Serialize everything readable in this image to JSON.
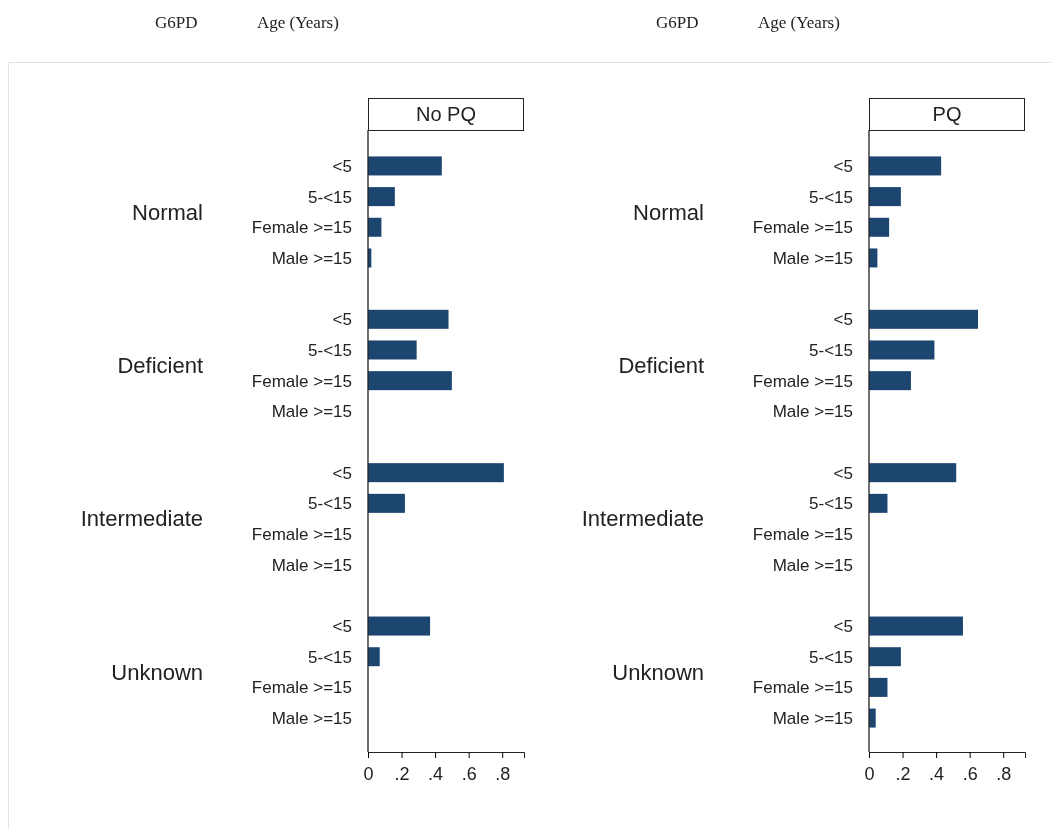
{
  "chart_data": [
    {
      "type": "bar",
      "orientation": "horizontal",
      "title": "No PQ",
      "ylabel": "Age (Years)",
      "annotations": [
        "G6PD",
        "Normal",
        "Deficient",
        "Intermediate",
        "Unknown"
      ],
      "categories": [
        "<5",
        "5-<15",
        "Female >=15",
        "Male >=15",
        null,
        "<5",
        "5-<15",
        "Female >=15",
        "Male >=15",
        null,
        "<5",
        "5-<15",
        "Female >=15",
        "Male >=15",
        null,
        "<5",
        "5-<15",
        "Female >=15",
        "Male >=15"
      ],
      "values": [
        0.44,
        0.16,
        0.08,
        0.02,
        null,
        0.48,
        0.29,
        0.5,
        null,
        null,
        0.81,
        0.22,
        null,
        null,
        null,
        0.37,
        0.07,
        null,
        null
      ],
      "color": "#1c4670",
      "xlim": [
        0,
        0.93
      ],
      "xticks": [
        0,
        {
          "value": 0.2,
          "label": ".2"
        },
        {
          "value": 0.4,
          "label": ".4"
        },
        {
          "value": 0.6,
          "label": ".6"
        },
        {
          "value": 0.8,
          "label": ".8"
        }
      ],
      "grid": false
    },
    {
      "type": "bar",
      "orientation": "horizontal",
      "title": "PQ",
      "ylabel": "Age (Years)",
      "annotations": [
        "G6PD",
        "Normal",
        "Deficient",
        "Intermediate",
        "Unknown"
      ],
      "categories": [
        "<5",
        "5-<15",
        "Female >=15",
        "Male >=15",
        null,
        "<5",
        "5-<15",
        "Female >=15",
        "Male >=15",
        null,
        "<5",
        "5-<15",
        "Female >=15",
        "Male >=15",
        null,
        "<5",
        "5-<15",
        "Female >=15",
        "Male >=15"
      ],
      "values": [
        0.43,
        0.19,
        0.12,
        0.05,
        null,
        0.65,
        0.39,
        0.25,
        null,
        null,
        0.52,
        0.11,
        null,
        null,
        null,
        0.56,
        0.19,
        0.11,
        0.04
      ],
      "color": "#1c4670",
      "xlim": [
        0,
        0.93
      ],
      "xticks": [
        0,
        {
          "value": 0.2,
          "label": ".2"
        },
        {
          "value": 0.4,
          "label": ".4"
        },
        {
          "value": 0.6,
          "label": ".6"
        },
        {
          "value": 0.8,
          "label": ".8"
        }
      ],
      "grid": false
    }
  ]
}
